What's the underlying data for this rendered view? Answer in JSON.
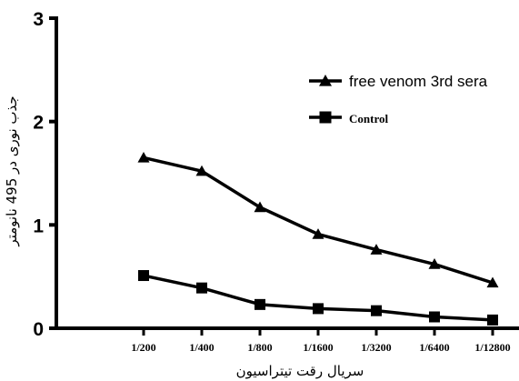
{
  "chart_data": {
    "type": "line",
    "categories": [
      "1/200",
      "1/400",
      "1/800",
      "1/1600",
      "1/3200",
      "1/6400",
      "1/12800"
    ],
    "series": [
      {
        "name": "free venom 3rd sera",
        "marker": "triangle",
        "values": [
          1.65,
          1.52,
          1.17,
          0.91,
          0.76,
          0.62,
          0.44
        ]
      },
      {
        "name": "Control",
        "marker": "square",
        "values": [
          0.51,
          0.39,
          0.23,
          0.19,
          0.17,
          0.11,
          0.08
        ]
      }
    ],
    "yticks": [
      "0",
      "1",
      "2",
      "3"
    ],
    "ylim": [
      0,
      3
    ],
    "xlabel": "سریال رقت تیتراسیون",
    "ylabel": "جذب نوری در 495 نانومتر",
    "title": "",
    "grid": false,
    "legend_position": "top-right",
    "colors": {
      "line": "#000000",
      "background": "#ffffff"
    }
  }
}
